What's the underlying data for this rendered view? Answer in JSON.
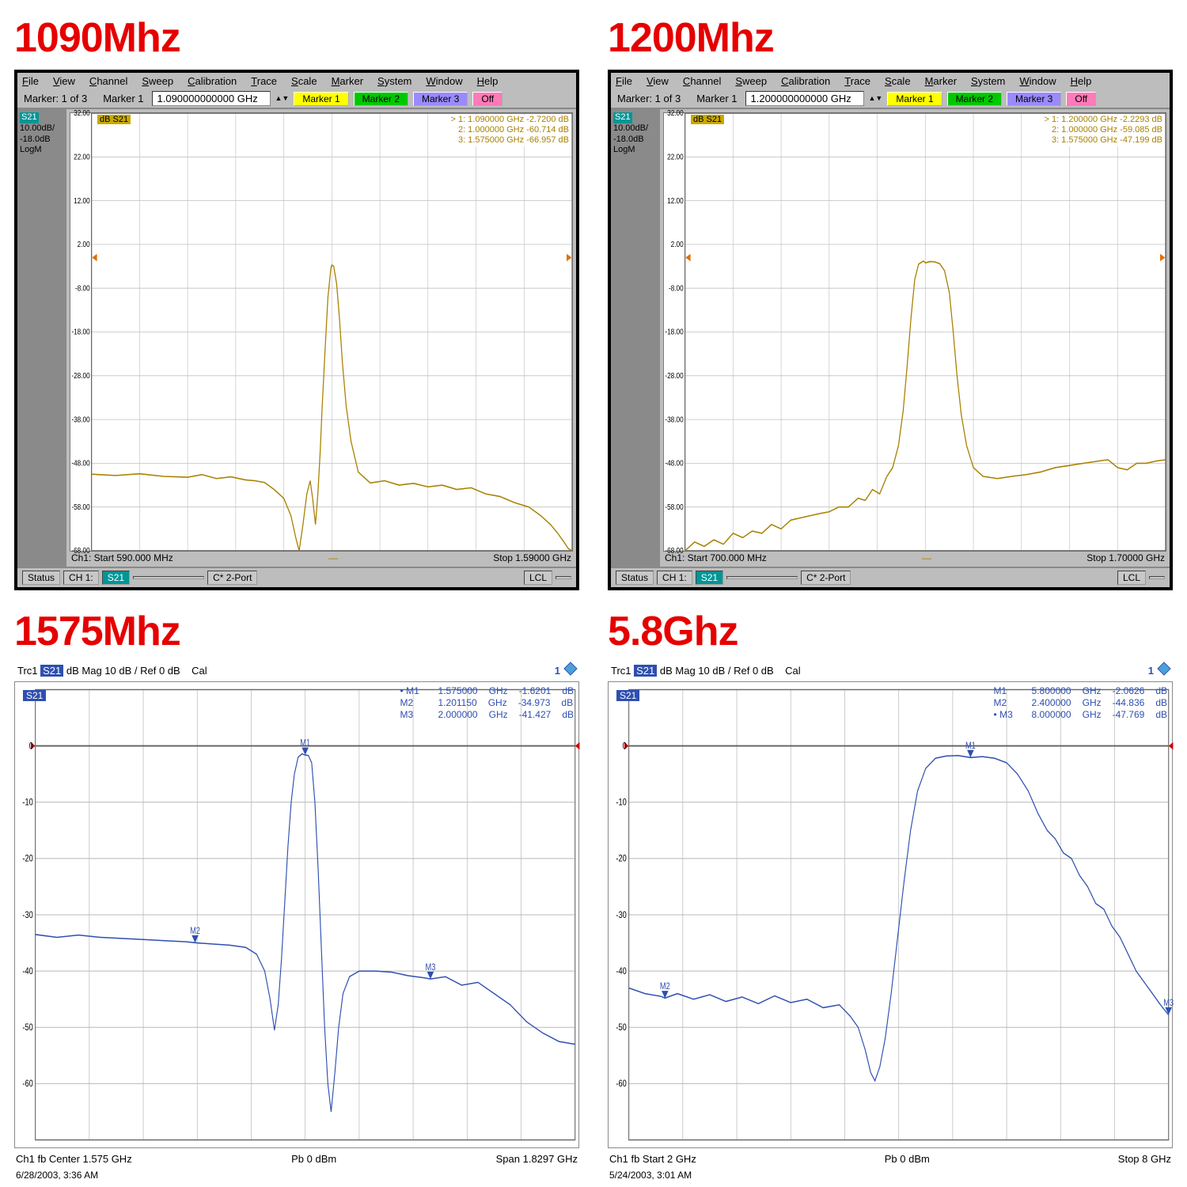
{
  "titles": [
    "1090Mhz",
    "1200Mhz",
    "1575Mhz",
    "5.8Ghz"
  ],
  "colors": {
    "title": "#e60000",
    "traceA": "#a88000",
    "traceB": "#2e4fb0",
    "gridA": "#c0c0c0",
    "gridB": "#b8b8b8",
    "panelBg": "#bdbdbd",
    "yinfoBg": "#8a8a8a",
    "hlBg": "#009696"
  },
  "menuA": [
    "File",
    "View",
    "Channel",
    "Sweep",
    "Calibration",
    "Trace",
    "Scale",
    "Marker",
    "System",
    "Window",
    "Help"
  ],
  "markerBarA": {
    "label": "Marker: 1 of 3",
    "mkLabel": "Marker 1",
    "btns": [
      "Marker 1",
      "Marker 2",
      "Marker 3",
      "Off"
    ]
  },
  "panelA": [
    {
      "freqBox": "1.090000000000 GHz",
      "yinfo": {
        "s21": "S21",
        "line1": "10.00dB/",
        "line2": "-18.0dB  LogM"
      },
      "yticks": [
        "32.00",
        "22.00",
        "12.00",
        "2.00",
        "-8.00",
        "-18.00",
        "-28.00",
        "-38.00",
        "-48.00",
        "-58.00",
        "-68.00"
      ],
      "yrange": [
        -68,
        32
      ],
      "footer": {
        "left": "Ch1: Start  590.000 MHz",
        "right": "Stop  1.59000 GHz"
      },
      "status": {
        "s": "Status",
        "ch": "CH 1:",
        "s21": "S21",
        "mode": "C* 2-Port",
        "lcl": "LCL"
      },
      "readout": [
        {
          "n": "> 1:",
          "f": "1.090000 GHz",
          "v": "-2.7200 dB"
        },
        {
          "n": "2:",
          "f": "1.000000 GHz",
          "v": "-60.714 dB"
        },
        {
          "n": "3:",
          "f": "1.575000 GHz",
          "v": "-66.957 dB"
        }
      ],
      "trace": [
        [
          0.0,
          -50.5
        ],
        [
          0.05,
          -50.8
        ],
        [
          0.1,
          -50.4
        ],
        [
          0.15,
          -51.0
        ],
        [
          0.2,
          -51.2
        ],
        [
          0.23,
          -50.6
        ],
        [
          0.26,
          -51.5
        ],
        [
          0.29,
          -51.1
        ],
        [
          0.32,
          -51.8
        ],
        [
          0.34,
          -52.0
        ],
        [
          0.36,
          -52.4
        ],
        [
          0.38,
          -54.0
        ],
        [
          0.4,
          -56.0
        ],
        [
          0.415,
          -60.0
        ],
        [
          0.425,
          -65.0
        ],
        [
          0.432,
          -68.0
        ],
        [
          0.44,
          -62.0
        ],
        [
          0.448,
          -55.0
        ],
        [
          0.455,
          -52.0
        ],
        [
          0.46,
          -56.0
        ],
        [
          0.466,
          -62.0
        ],
        [
          0.471,
          -55.0
        ],
        [
          0.476,
          -45.0
        ],
        [
          0.48,
          -35.0
        ],
        [
          0.486,
          -22.0
        ],
        [
          0.492,
          -10.0
        ],
        [
          0.498,
          -3.5
        ],
        [
          0.5,
          -2.7
        ],
        [
          0.504,
          -3.0
        ],
        [
          0.51,
          -7.0
        ],
        [
          0.516,
          -15.0
        ],
        [
          0.522,
          -25.0
        ],
        [
          0.53,
          -35.0
        ],
        [
          0.54,
          -43.0
        ],
        [
          0.555,
          -50.0
        ],
        [
          0.58,
          -52.5
        ],
        [
          0.61,
          -52.0
        ],
        [
          0.64,
          -53.0
        ],
        [
          0.67,
          -52.6
        ],
        [
          0.7,
          -53.4
        ],
        [
          0.73,
          -53.0
        ],
        [
          0.76,
          -54.0
        ],
        [
          0.79,
          -53.6
        ],
        [
          0.82,
          -55.0
        ],
        [
          0.85,
          -55.6
        ],
        [
          0.88,
          -57.0
        ],
        [
          0.91,
          -58.0
        ],
        [
          0.935,
          -60.0
        ],
        [
          0.955,
          -62.0
        ],
        [
          0.97,
          -64.0
        ],
        [
          0.983,
          -66.0
        ],
        [
          0.992,
          -67.5
        ],
        [
          1.0,
          -68.0
        ]
      ]
    },
    {
      "freqBox": "1.200000000000 GHz",
      "yinfo": {
        "s21": "S21",
        "line1": "10.00dB/",
        "line2": "-18.0dB  LogM"
      },
      "yticks": [
        "32.00",
        "22.00",
        "12.00",
        "2.00",
        "-8.00",
        "-18.00",
        "-28.00",
        "-38.00",
        "-48.00",
        "-58.00",
        "-68.00"
      ],
      "yrange": [
        -68,
        32
      ],
      "footer": {
        "left": "Ch1: Start  700.000 MHz",
        "right": "Stop  1.70000 GHz"
      },
      "status": {
        "s": "Status",
        "ch": "CH 1:",
        "s21": "S21",
        "mode": "C* 2-Port",
        "lcl": "LCL"
      },
      "readout": [
        {
          "n": "> 1:",
          "f": "1.200000 GHz",
          "v": "-2.2293 dB"
        },
        {
          "n": "2:",
          "f": "1.000000 GHz",
          "v": "-59.085 dB"
        },
        {
          "n": "3:",
          "f": "1.575000 GHz",
          "v": "-47.199 dB"
        }
      ],
      "trace": [
        [
          0.0,
          -68.0
        ],
        [
          0.02,
          -66.0
        ],
        [
          0.04,
          -67.0
        ],
        [
          0.06,
          -65.5
        ],
        [
          0.08,
          -66.5
        ],
        [
          0.1,
          -64.0
        ],
        [
          0.12,
          -65.0
        ],
        [
          0.14,
          -63.5
        ],
        [
          0.16,
          -64.0
        ],
        [
          0.18,
          -62.0
        ],
        [
          0.2,
          -63.0
        ],
        [
          0.22,
          -61.0
        ],
        [
          0.24,
          -60.5
        ],
        [
          0.26,
          -60.0
        ],
        [
          0.28,
          -59.5
        ],
        [
          0.3,
          -59.1
        ],
        [
          0.32,
          -58.0
        ],
        [
          0.34,
          -58.0
        ],
        [
          0.36,
          -56.0
        ],
        [
          0.375,
          -56.5
        ],
        [
          0.39,
          -54.0
        ],
        [
          0.405,
          -55.0
        ],
        [
          0.42,
          -51.0
        ],
        [
          0.432,
          -49.0
        ],
        [
          0.444,
          -44.0
        ],
        [
          0.454,
          -36.0
        ],
        [
          0.462,
          -26.0
        ],
        [
          0.47,
          -15.0
        ],
        [
          0.478,
          -6.0
        ],
        [
          0.486,
          -2.5
        ],
        [
          0.496,
          -1.8
        ],
        [
          0.5,
          -2.2
        ],
        [
          0.51,
          -1.9
        ],
        [
          0.52,
          -2.0
        ],
        [
          0.53,
          -2.4
        ],
        [
          0.54,
          -4.0
        ],
        [
          0.55,
          -9.0
        ],
        [
          0.558,
          -18.0
        ],
        [
          0.566,
          -28.0
        ],
        [
          0.575,
          -37.0
        ],
        [
          0.586,
          -44.0
        ],
        [
          0.6,
          -49.0
        ],
        [
          0.62,
          -51.0
        ],
        [
          0.65,
          -51.5
        ],
        [
          0.68,
          -51.0
        ],
        [
          0.71,
          -50.6
        ],
        [
          0.74,
          -50.0
        ],
        [
          0.77,
          -49.0
        ],
        [
          0.8,
          -48.5
        ],
        [
          0.83,
          -48.0
        ],
        [
          0.86,
          -47.5
        ],
        [
          0.88,
          -47.2
        ],
        [
          0.9,
          -49.0
        ],
        [
          0.92,
          -49.5
        ],
        [
          0.94,
          -48.0
        ],
        [
          0.96,
          -48.0
        ],
        [
          0.98,
          -47.5
        ],
        [
          1.0,
          -47.2
        ]
      ]
    }
  ],
  "panelB": [
    {
      "topinfo": "Trc1 S21 dB Mag  10 dB /  Ref 0 dB    Cal",
      "topnum": "1",
      "yticks": [
        "0",
        "-10",
        "-20",
        "-30",
        "-40",
        "-50",
        "-60"
      ],
      "yrange": [
        -70,
        10
      ],
      "readout": [
        {
          "n": "• M1",
          "f": "1.575000",
          "u": "GHz",
          "v": "-1.6201",
          "du": "dB"
        },
        {
          "n": "M2",
          "f": "1.201150",
          "u": "GHz",
          "v": "-34.973",
          "du": "dB"
        },
        {
          "n": "M3",
          "f": "2.000000",
          "u": "GHz",
          "v": "-41.427",
          "du": "dB"
        }
      ],
      "markers": [
        {
          "label": "M1",
          "x": 0.5,
          "y": -1.62
        },
        {
          "label": "M2",
          "x": 0.296,
          "y": -34.97
        },
        {
          "label": "M3",
          "x": 0.732,
          "y": -41.43
        }
      ],
      "footer": {
        "left": "Ch1 fb  Center  1.575 GHz",
        "mid": "Pb   0 dBm",
        "right": "Span  1.8297 GHz"
      },
      "ts": "6/28/2003, 3:36 AM",
      "trace": [
        [
          0.0,
          -33.5
        ],
        [
          0.04,
          -34.0
        ],
        [
          0.08,
          -33.6
        ],
        [
          0.12,
          -34.0
        ],
        [
          0.16,
          -34.2
        ],
        [
          0.2,
          -34.4
        ],
        [
          0.24,
          -34.6
        ],
        [
          0.28,
          -34.8
        ],
        [
          0.3,
          -35.0
        ],
        [
          0.33,
          -35.2
        ],
        [
          0.36,
          -35.4
        ],
        [
          0.39,
          -35.8
        ],
        [
          0.41,
          -37.0
        ],
        [
          0.425,
          -40.0
        ],
        [
          0.435,
          -45.0
        ],
        [
          0.443,
          -50.5
        ],
        [
          0.45,
          -46.0
        ],
        [
          0.456,
          -38.0
        ],
        [
          0.462,
          -28.0
        ],
        [
          0.468,
          -18.0
        ],
        [
          0.474,
          -10.0
        ],
        [
          0.48,
          -5.0
        ],
        [
          0.487,
          -2.0
        ],
        [
          0.494,
          -1.4
        ],
        [
          0.5,
          -1.62
        ],
        [
          0.506,
          -1.7
        ],
        [
          0.512,
          -3.0
        ],
        [
          0.518,
          -10.0
        ],
        [
          0.524,
          -22.0
        ],
        [
          0.53,
          -36.0
        ],
        [
          0.536,
          -50.0
        ],
        [
          0.542,
          -60.0
        ],
        [
          0.548,
          -65.0
        ],
        [
          0.555,
          -58.0
        ],
        [
          0.562,
          -50.0
        ],
        [
          0.57,
          -44.0
        ],
        [
          0.582,
          -41.0
        ],
        [
          0.6,
          -40.0
        ],
        [
          0.63,
          -40.0
        ],
        [
          0.66,
          -40.2
        ],
        [
          0.69,
          -40.8
        ],
        [
          0.72,
          -41.2
        ],
        [
          0.732,
          -41.4
        ],
        [
          0.76,
          -41.0
        ],
        [
          0.79,
          -42.5
        ],
        [
          0.82,
          -42.0
        ],
        [
          0.85,
          -44.0
        ],
        [
          0.88,
          -46.0
        ],
        [
          0.91,
          -49.0
        ],
        [
          0.94,
          -51.0
        ],
        [
          0.97,
          -52.5
        ],
        [
          1.0,
          -53.0
        ]
      ]
    },
    {
      "topinfo": "Trc1 S21 dB Mag  10 dB /  Ref 0 dB    Cal",
      "topnum": "1",
      "yticks": [
        "0",
        "-10",
        "-20",
        "-30",
        "-40",
        "-50",
        "-60"
      ],
      "yrange": [
        -70,
        10
      ],
      "readout": [
        {
          "n": "M1",
          "f": "5.800000",
          "u": "GHz",
          "v": "-2.0626",
          "du": "dB"
        },
        {
          "n": "M2",
          "f": "2.400000",
          "u": "GHz",
          "v": "-44.836",
          "du": "dB"
        },
        {
          "n": "• M3",
          "f": "8.000000",
          "u": "GHz",
          "v": "-47.769",
          "du": "dB"
        }
      ],
      "markers": [
        {
          "label": "M1",
          "x": 0.633,
          "y": -2.06
        },
        {
          "label": "M2",
          "x": 0.067,
          "y": -44.84
        },
        {
          "label": "M3",
          "x": 1.0,
          "y": -47.77
        }
      ],
      "footer": {
        "left": "Ch1 fb  Start  2 GHz",
        "mid": "Pb   0 dBm",
        "right": "Stop  8 GHz"
      },
      "ts": "5/24/2003, 3:01 AM",
      "trace": [
        [
          0.0,
          -43.0
        ],
        [
          0.03,
          -44.0
        ],
        [
          0.06,
          -44.5
        ],
        [
          0.067,
          -44.8
        ],
        [
          0.09,
          -44.0
        ],
        [
          0.12,
          -45.0
        ],
        [
          0.15,
          -44.2
        ],
        [
          0.18,
          -45.4
        ],
        [
          0.21,
          -44.6
        ],
        [
          0.24,
          -45.8
        ],
        [
          0.27,
          -44.4
        ],
        [
          0.3,
          -45.6
        ],
        [
          0.33,
          -45.0
        ],
        [
          0.36,
          -46.5
        ],
        [
          0.39,
          -46.0
        ],
        [
          0.41,
          -48.0
        ],
        [
          0.425,
          -50.0
        ],
        [
          0.438,
          -54.0
        ],
        [
          0.448,
          -58.0
        ],
        [
          0.456,
          -59.5
        ],
        [
          0.465,
          -57.0
        ],
        [
          0.475,
          -52.0
        ],
        [
          0.486,
          -44.0
        ],
        [
          0.498,
          -34.0
        ],
        [
          0.51,
          -24.0
        ],
        [
          0.522,
          -15.0
        ],
        [
          0.535,
          -8.0
        ],
        [
          0.55,
          -4.0
        ],
        [
          0.568,
          -2.2
        ],
        [
          0.588,
          -1.8
        ],
        [
          0.61,
          -1.7
        ],
        [
          0.633,
          -2.06
        ],
        [
          0.655,
          -1.9
        ],
        [
          0.678,
          -2.2
        ],
        [
          0.7,
          -3.0
        ],
        [
          0.72,
          -5.0
        ],
        [
          0.74,
          -8.0
        ],
        [
          0.758,
          -12.0
        ],
        [
          0.775,
          -15.0
        ],
        [
          0.79,
          -16.5
        ],
        [
          0.805,
          -19.0
        ],
        [
          0.82,
          -20.0
        ],
        [
          0.835,
          -23.0
        ],
        [
          0.85,
          -25.0
        ],
        [
          0.865,
          -28.0
        ],
        [
          0.88,
          -29.0
        ],
        [
          0.895,
          -32.0
        ],
        [
          0.91,
          -34.0
        ],
        [
          0.925,
          -37.0
        ],
        [
          0.94,
          -40.0
        ],
        [
          0.955,
          -42.0
        ],
        [
          0.97,
          -44.0
        ],
        [
          0.985,
          -46.0
        ],
        [
          1.0,
          -47.8
        ]
      ]
    }
  ]
}
